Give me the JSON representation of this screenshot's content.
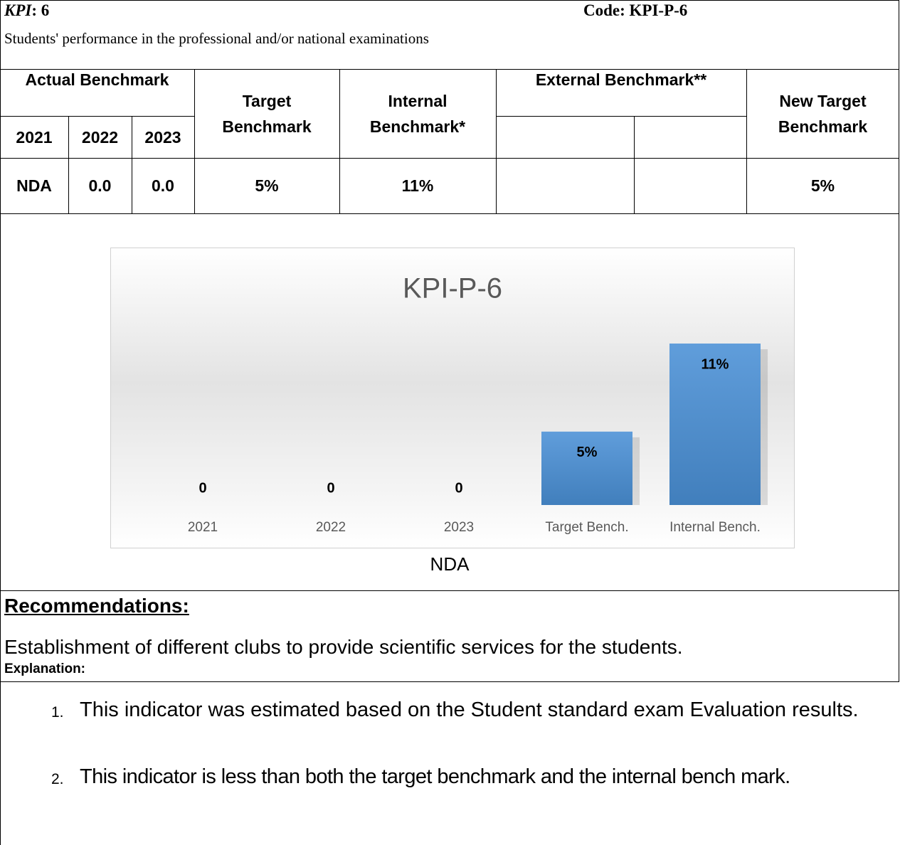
{
  "header": {
    "kpi_label": "KPI",
    "kpi_value": ": 6",
    "code": "Code: KPI-P-6",
    "description": "Students' performance in the professional and/or national examinations"
  },
  "table": {
    "headers": {
      "actual": "Actual Benchmark",
      "years": [
        "2021",
        "2022",
        "2023"
      ],
      "target": "Target Benchmark",
      "internal": "Internal Benchmark*",
      "external": "External Benchmark**",
      "new_target": "New Target Benchmark"
    },
    "row": {
      "name": "NDA",
      "y2022": "0.0",
      "y2023": "0.0",
      "target": "5%",
      "internal": "11%",
      "new_target": "5%"
    }
  },
  "chart_data": {
    "type": "bar",
    "title": "KPI-P-6",
    "categories": [
      "2021",
      "2022",
      "2023",
      "Target Bench.",
      "Internal Bench."
    ],
    "values": [
      0,
      0,
      0,
      5,
      11
    ],
    "value_labels": [
      "0",
      "0",
      "0",
      "5%",
      "11%"
    ],
    "color": "#4a90d6"
  },
  "chart_caption": "NDA",
  "recommendations": {
    "heading": "Recommendations:",
    "text": "Establishment of different clubs to provide scientific services for the students."
  },
  "explanation": {
    "heading": "Explanation:",
    "items": [
      {
        "number": "1.",
        "text": "This indicator was estimated based on the Student standard exam Evaluation results."
      },
      {
        "number": "2.",
        "text": "This indicator is less than both the target benchmark and the internal bench mark."
      }
    ]
  }
}
